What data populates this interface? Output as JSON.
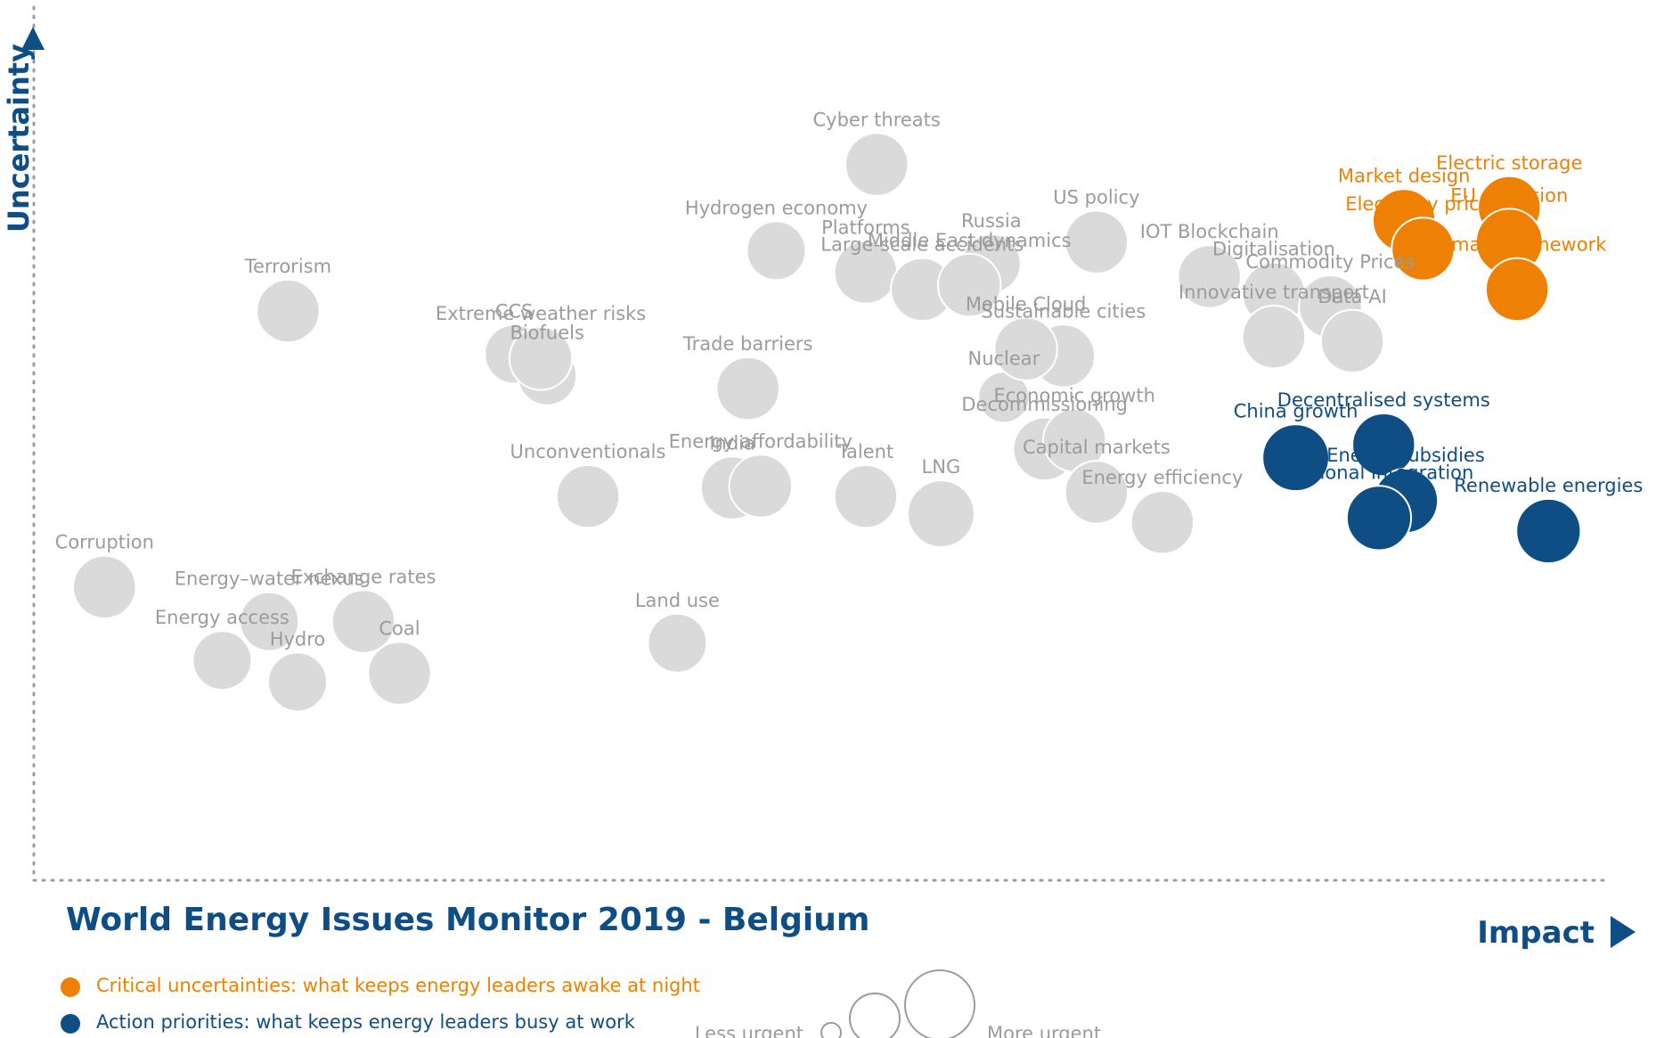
{
  "chart_data": {
    "type": "scatter",
    "title": "World Energy Issues Monitor 2019 - Belgium",
    "xlabel": "Impact",
    "ylabel": "Uncertainty",
    "size_legend": {
      "less": "Less urgent",
      "more": "More urgent"
    },
    "categories": [
      {
        "key": "critical",
        "label": "Critical uncertainties: what keeps energy leaders awake at night",
        "color": "#ee8003"
      },
      {
        "key": "action",
        "label": "Action priorities: what keeps energy leaders busy at work",
        "color": "#0e4e85"
      },
      {
        "key": "other",
        "label": "",
        "color": "#dadada"
      }
    ],
    "points": [
      {
        "label": "Corruption",
        "x": 0.045,
        "y": 0.34,
        "size": 0.8,
        "cat": "other"
      },
      {
        "label": "Energy access",
        "x": 0.12,
        "y": 0.255,
        "size": 0.75,
        "cat": "other"
      },
      {
        "label": "Energy–water nexus",
        "x": 0.15,
        "y": 0.3,
        "size": 0.75,
        "cat": "other"
      },
      {
        "label": "Hydro",
        "x": 0.168,
        "y": 0.23,
        "size": 0.75,
        "cat": "other"
      },
      {
        "label": "Exchange rates",
        "x": 0.21,
        "y": 0.3,
        "size": 0.8,
        "cat": "other"
      },
      {
        "label": "Coal",
        "x": 0.233,
        "y": 0.24,
        "size": 0.8,
        "cat": "other"
      },
      {
        "label": "Terrorism",
        "x": 0.162,
        "y": 0.66,
        "size": 0.8,
        "cat": "other"
      },
      {
        "label": "CCS",
        "x": 0.306,
        "y": 0.61,
        "size": 0.75,
        "cat": "other"
      },
      {
        "label": "Biofuels",
        "x": 0.327,
        "y": 0.585,
        "size": 0.75,
        "cat": "other"
      },
      {
        "label": "Extreme weather risks",
        "x": 0.323,
        "y": 0.605,
        "size": 0.8,
        "cat": "other"
      },
      {
        "label": "Unconventionals",
        "x": 0.353,
        "y": 0.445,
        "size": 0.8,
        "cat": "other"
      },
      {
        "label": "Land use",
        "x": 0.41,
        "y": 0.275,
        "size": 0.75,
        "cat": "other"
      },
      {
        "label": "Trade barriers",
        "x": 0.455,
        "y": 0.57,
        "size": 0.8,
        "cat": "other"
      },
      {
        "label": "India",
        "x": 0.445,
        "y": 0.455,
        "size": 0.8,
        "cat": "other"
      },
      {
        "label": "Energy affordability",
        "x": 0.463,
        "y": 0.457,
        "size": 0.8,
        "cat": "other"
      },
      {
        "label": "Hydrogen economy",
        "x": 0.473,
        "y": 0.73,
        "size": 0.75,
        "cat": "other"
      },
      {
        "label": "Talent",
        "x": 0.53,
        "y": 0.445,
        "size": 0.8,
        "cat": "other"
      },
      {
        "label": "Cyber threats",
        "x": 0.537,
        "y": 0.83,
        "size": 0.8,
        "cat": "other"
      },
      {
        "label": "Platforms",
        "x": 0.53,
        "y": 0.705,
        "size": 0.8,
        "cat": "other"
      },
      {
        "label": "LNG",
        "x": 0.578,
        "y": 0.425,
        "size": 0.85,
        "cat": "other"
      },
      {
        "label": "Large-scale accidents",
        "x": 0.566,
        "y": 0.685,
        "size": 0.8,
        "cat": "other"
      },
      {
        "label": "Russia",
        "x": 0.61,
        "y": 0.715,
        "size": 0.75,
        "cat": "other"
      },
      {
        "label": "Middle East dynamics",
        "x": 0.596,
        "y": 0.69,
        "size": 0.8,
        "cat": "other"
      },
      {
        "label": "US policy",
        "x": 0.677,
        "y": 0.74,
        "size": 0.8,
        "cat": "other"
      },
      {
        "label": "Nuclear",
        "x": 0.618,
        "y": 0.56,
        "size": 0.65,
        "cat": "other"
      },
      {
        "label": "Sustainable cities",
        "x": 0.656,
        "y": 0.608,
        "size": 0.8,
        "cat": "other"
      },
      {
        "label": "Mobile Cloud",
        "x": 0.632,
        "y": 0.616,
        "size": 0.8,
        "cat": "other"
      },
      {
        "label": "Decommissioning",
        "x": 0.644,
        "y": 0.5,
        "size": 0.8,
        "cat": "other"
      },
      {
        "label": "Economic growth",
        "x": 0.663,
        "y": 0.51,
        "size": 0.8,
        "cat": "other"
      },
      {
        "label": "Capital markets",
        "x": 0.677,
        "y": 0.45,
        "size": 0.8,
        "cat": "other"
      },
      {
        "label": "Energy efficiency",
        "x": 0.719,
        "y": 0.415,
        "size": 0.8,
        "cat": "other"
      },
      {
        "label": "IOT Blockchain",
        "x": 0.749,
        "y": 0.7,
        "size": 0.8,
        "cat": "other"
      },
      {
        "label": "Digitalisation",
        "x": 0.79,
        "y": 0.68,
        "size": 0.8,
        "cat": "other"
      },
      {
        "label": "Innovative transport",
        "x": 0.79,
        "y": 0.63,
        "size": 0.8,
        "cat": "other"
      },
      {
        "label": "Commodity Prices",
        "x": 0.826,
        "y": 0.665,
        "size": 0.8,
        "cat": "other"
      },
      {
        "label": "Data AI",
        "x": 0.84,
        "y": 0.625,
        "size": 0.8,
        "cat": "other"
      },
      {
        "label": "Market design",
        "x": 0.873,
        "y": 0.765,
        "size": 0.8,
        "cat": "critical"
      },
      {
        "label": "Electricity prices",
        "x": 0.885,
        "y": 0.732,
        "size": 0.8,
        "cat": "critical"
      },
      {
        "label": "Electric storage",
        "x": 0.94,
        "y": 0.78,
        "size": 0.8,
        "cat": "critical"
      },
      {
        "label": "EU Cohesion",
        "x": 0.94,
        "y": 0.74,
        "size": 0.85,
        "cat": "critical"
      },
      {
        "label": "Climate framework",
        "x": 0.945,
        "y": 0.685,
        "size": 0.8,
        "cat": "critical"
      },
      {
        "label": "China growth",
        "x": 0.804,
        "y": 0.49,
        "size": 0.85,
        "cat": "action"
      },
      {
        "label": "Decentralised systems",
        "x": 0.86,
        "y": 0.505,
        "size": 0.8,
        "cat": "action"
      },
      {
        "label": "Energy subsidies",
        "x": 0.874,
        "y": 0.44,
        "size": 0.82,
        "cat": "action"
      },
      {
        "label": "Regional integration",
        "x": 0.857,
        "y": 0.42,
        "size": 0.82,
        "cat": "action"
      },
      {
        "label": "Renewable energies",
        "x": 0.965,
        "y": 0.405,
        "size": 0.82,
        "cat": "action"
      }
    ]
  }
}
